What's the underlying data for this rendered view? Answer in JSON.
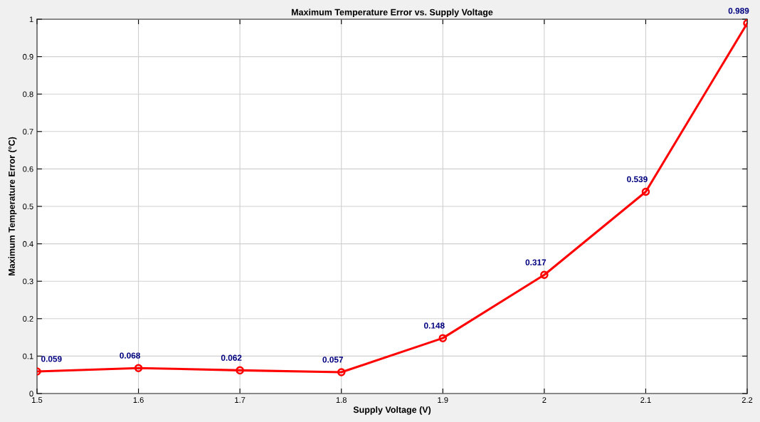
{
  "chart_data": {
    "type": "line",
    "title": "Maximum Temperature Error vs. Supply Voltage",
    "xlabel": "Supply Voltage (V)",
    "ylabel": "Maximum Temperature Error (°C)",
    "x": [
      1.5,
      1.6,
      1.7,
      1.8,
      1.9,
      2,
      2.1,
      2.2
    ],
    "series": [
      {
        "color": "#ff0000",
        "values": [
          0.059,
          0.068,
          0.062,
          0.057,
          0.148,
          0.317,
          0.539,
          0.989
        ]
      }
    ],
    "xlim": [
      1.5,
      2.2
    ],
    "xticks": [
      1.5,
      1.6,
      1.7,
      1.8,
      1.9,
      2,
      2.1,
      2.2
    ],
    "ylim": [
      0,
      1
    ],
    "yticks": [
      0,
      0.1,
      0.2,
      0.3,
      0.4,
      0.5,
      0.6,
      0.7,
      0.8,
      0.9,
      1
    ],
    "grid": true,
    "marker": "circle",
    "line_style": "solid",
    "data_labels": true
  }
}
